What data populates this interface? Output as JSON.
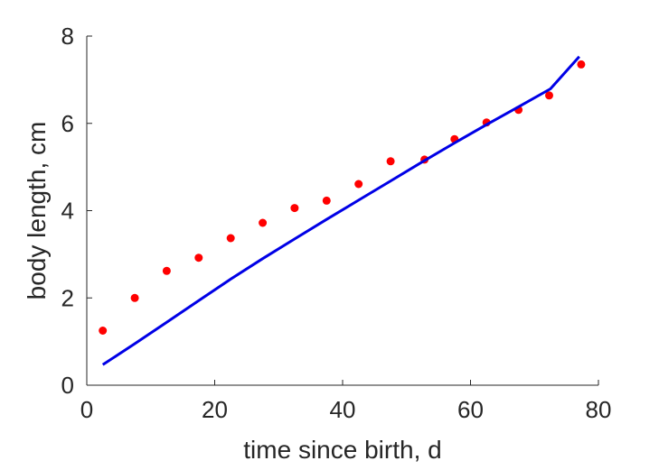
{
  "chart_data": {
    "type": "scatter",
    "xlabel": "time since birth, d",
    "ylabel": "body length, cm",
    "xlim": [
      0,
      80
    ],
    "ylim": [
      0,
      8
    ],
    "xticks": [
      0,
      20,
      40,
      60,
      80
    ],
    "yticks": [
      0,
      2,
      4,
      6,
      8
    ],
    "grid": false,
    "series": [
      {
        "kind": "points",
        "color": "#ff0000",
        "x": [
          2.5,
          7.5,
          12.5,
          17.5,
          22.5,
          27.5,
          32.5,
          37.5,
          42.5,
          47.5,
          52.8,
          57.5,
          62.5,
          67.5,
          72.3,
          77.3
        ],
        "y": [
          1.25,
          2.0,
          2.62,
          2.92,
          3.37,
          3.72,
          4.06,
          4.23,
          4.61,
          5.13,
          5.17,
          5.64,
          6.02,
          6.31,
          6.64,
          7.35
        ]
      },
      {
        "kind": "line",
        "color": "#0000e6",
        "x": [
          2.5,
          7.5,
          12.5,
          17.5,
          22.5,
          27.5,
          32.5,
          37.5,
          42.5,
          47.5,
          52.5,
          57.5,
          62.5,
          67.5,
          72.5,
          77.0
        ],
        "y": [
          0.47,
          0.95,
          1.44,
          1.94,
          2.43,
          2.9,
          3.35,
          3.8,
          4.24,
          4.68,
          5.12,
          5.55,
          5.97,
          6.38,
          6.79,
          7.53
        ]
      }
    ]
  }
}
